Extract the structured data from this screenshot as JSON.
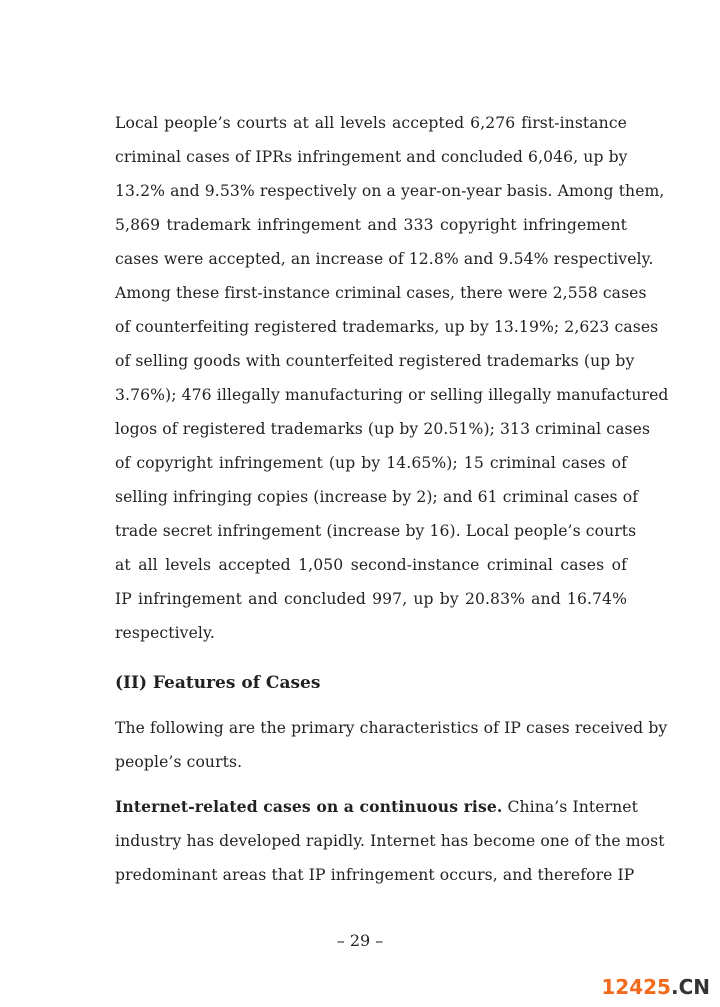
{
  "paragraph1": [
    "Local people’s courts at all levels accepted 6,276 first-instance",
    "criminal cases of IPRs infringement and concluded 6,046, up by",
    "13.2% and 9.53% respectively on a year-on-year basis. Among them,",
    "5,869 trademark infringement and 333 copyright infringement",
    "cases were accepted, an increase of 12.8% and 9.54% respectively.",
    "Among these first-instance criminal cases, there were 2,558 cases",
    "of counterfeiting registered trademarks, up by 13.19%; 2,623 cases",
    "of selling goods with counterfeited registered trademarks (up by",
    "3.76%); 476 illegally manufacturing or selling illegally manufactured",
    "logos of registered trademarks (up by 20.51%); 313 criminal cases",
    "of copyright infringement (up by 14.65%); 15 criminal cases of",
    "selling infringing copies (increase by 2); and 61 criminal cases of",
    "trade secret infringement (increase by 16). Local people’s courts",
    "at all levels accepted 1,050 second-instance criminal cases of",
    "IP infringement and concluded 997, up by 20.83% and 16.74%",
    "respectively."
  ],
  "heading": "(II) Features of Cases",
  "paragraph2": [
    "The following are the primary characteristics of IP cases received by",
    "people’s courts."
  ],
  "paragraph3": {
    "lead": "Internet-related cases on a continuous rise.",
    "first_rest": " China’s Internet",
    "lines": [
      "industry has developed rapidly. Internet has become one of the most",
      "predominant areas that IP infringement occurs, and therefore IP"
    ]
  },
  "page_number": "– 29 –",
  "watermark": {
    "number": "12425",
    "suffix": ".CN",
    "colors": {
      "number": "#f26a1b",
      "suffix": "#333333"
    }
  }
}
